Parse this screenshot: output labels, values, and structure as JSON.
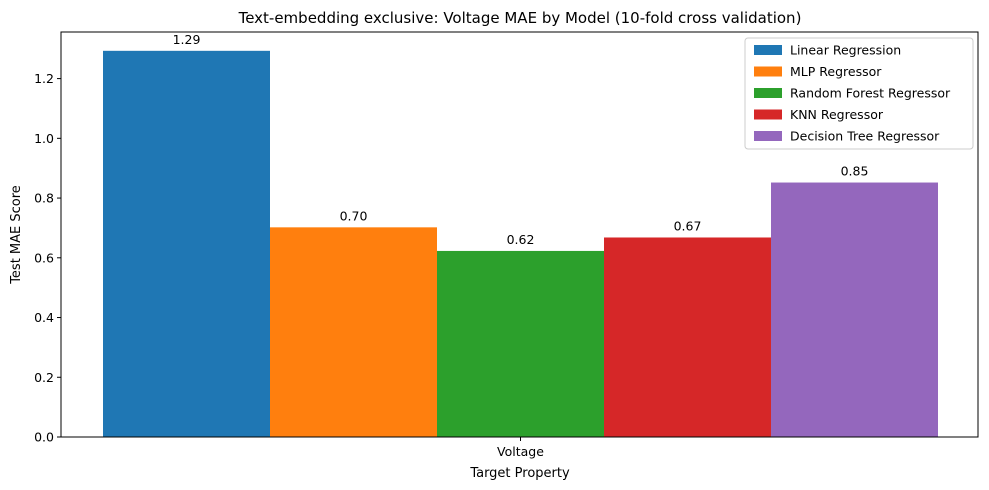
{
  "chart_data": {
    "type": "bar",
    "title": "Text-embedding exclusive: Voltage MAE by Model (10-fold cross validation)",
    "xlabel": "Target Property",
    "ylabel": "Test MAE Score",
    "categories": [
      "Voltage"
    ],
    "ylim": [
      0,
      1.356
    ],
    "yticks": [
      0.0,
      0.2,
      0.4,
      0.6,
      0.8,
      1.0,
      1.2
    ],
    "grid": false,
    "legend_position": "top-right",
    "series": [
      {
        "name": "Linear Regression",
        "values": [
          1.293
        ],
        "label": "1.29",
        "color": "#1f77b4"
      },
      {
        "name": "MLP Regressor",
        "values": [
          0.702
        ],
        "label": "0.70",
        "color": "#ff7f0e"
      },
      {
        "name": "Random Forest Regressor",
        "values": [
          0.623
        ],
        "label": "0.62",
        "color": "#2ca02c"
      },
      {
        "name": "KNN Regressor",
        "values": [
          0.668
        ],
        "label": "0.67",
        "color": "#d62728"
      },
      {
        "name": "Decision Tree Regressor",
        "values": [
          0.852
        ],
        "label": "0.85",
        "color": "#9467bd"
      }
    ]
  }
}
